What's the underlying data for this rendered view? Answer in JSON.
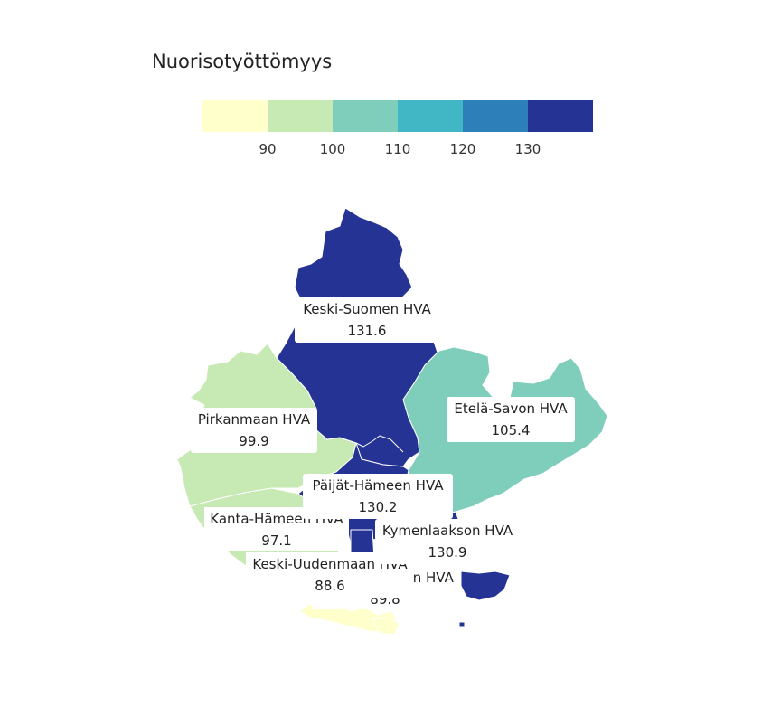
{
  "legend": {
    "title": "Nuorisotyöttömyys",
    "bins": [
      {
        "color": "#ffffcc"
      },
      {
        "color": "#c7e9b4"
      },
      {
        "color": "#7fcdbb"
      },
      {
        "color": "#41b6c4"
      },
      {
        "color": "#2c7fb8"
      },
      {
        "color": "#253494"
      }
    ],
    "ticks": [
      "90",
      "100",
      "110",
      "120",
      "130"
    ]
  },
  "regions": [
    {
      "id": "keski-suomi",
      "name": "Keski-Suomen HVA",
      "value": "131.6",
      "color": "#253494"
    },
    {
      "id": "pirkanmaa",
      "name": "Pirkanmaan HVA",
      "value": "99.9",
      "color": "#c7e9b4"
    },
    {
      "id": "etela-savo",
      "name": "Etelä-Savon HVA",
      "value": "105.4",
      "color": "#7fcdbb"
    },
    {
      "id": "paijat-hame",
      "name": "Päijät-Hämeen HVA",
      "value": "130.2",
      "color": "#253494"
    },
    {
      "id": "kanta-hame",
      "name": "Kanta-Hämeen HVA",
      "value": "97.1",
      "color": "#c7e9b4"
    },
    {
      "id": "kymenlaakso",
      "name": "Kymenlaakson HVA",
      "value": "130.9",
      "color": "#253494"
    },
    {
      "id": "keski-uusimaa",
      "name": "Keski-Uudenmaan HVA",
      "value": "88.6",
      "color": "#ffffcc"
    },
    {
      "id": "ita-uusimaa",
      "name": "Itä-Uudenmaan HVA",
      "value": "89.8",
      "color": "#ffffcc"
    }
  ]
}
